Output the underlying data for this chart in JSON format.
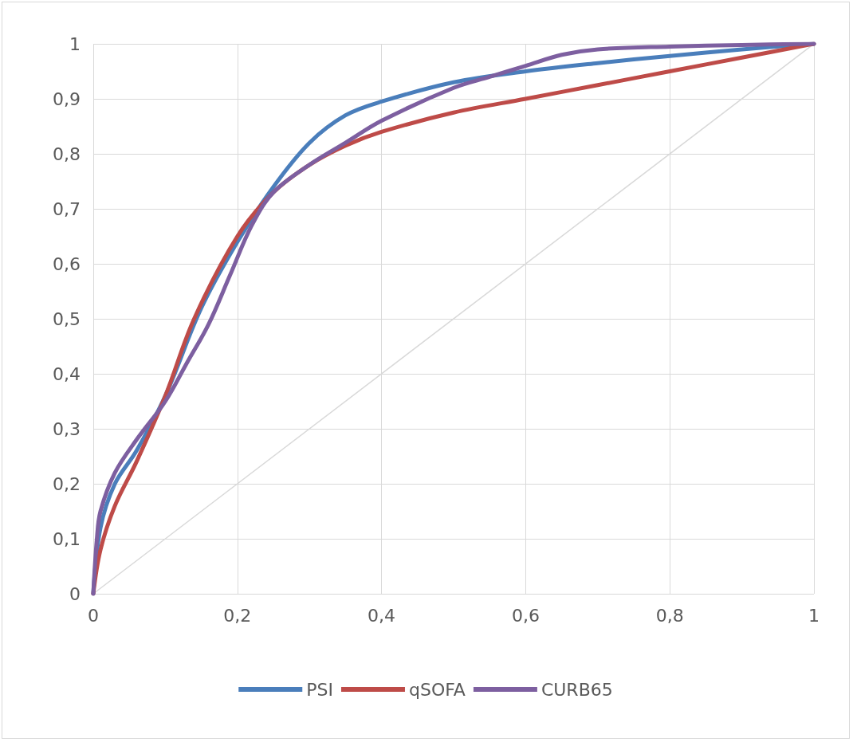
{
  "chart_data": {
    "type": "line",
    "marker": "none",
    "grid": true,
    "legend": "bottom",
    "xlim": [
      0,
      1
    ],
    "ylim": [
      0,
      1
    ],
    "xticks": [
      0,
      {
        "value": 0.2,
        "label": "0,2"
      },
      {
        "value": 0.4,
        "label": "0,4"
      },
      {
        "value": 0.6,
        "label": "0,6"
      },
      {
        "value": 0.8,
        "label": "0,8"
      },
      1
    ],
    "yticks": [
      0,
      {
        "value": 0.1,
        "label": "0,1"
      },
      {
        "value": 0.2,
        "label": "0,2"
      },
      {
        "value": 0.3,
        "label": "0,3"
      },
      {
        "value": 0.4,
        "label": "0,4"
      },
      {
        "value": 0.5,
        "label": "0,5"
      },
      {
        "value": 0.6,
        "label": "0,6"
      },
      {
        "value": 0.7,
        "label": "0,7"
      },
      {
        "value": 0.8,
        "label": "0,8"
      },
      {
        "value": 0.9,
        "label": "0,9"
      },
      1
    ],
    "series": [
      {
        "name": "PSI",
        "color": "#4a7ebb",
        "x": [
          0,
          0.01,
          0.03,
          0.06,
          0.1,
          0.15,
          0.2,
          0.25,
          0.3,
          0.35,
          0.4,
          0.5,
          0.6,
          0.7,
          0.8,
          0.9,
          1
        ],
        "values": [
          0,
          0.12,
          0.2,
          0.26,
          0.36,
          0.52,
          0.64,
          0.74,
          0.82,
          0.87,
          0.895,
          0.93,
          0.95,
          0.965,
          0.978,
          0.99,
          1
        ]
      },
      {
        "name": "qSOFA",
        "color": "#be4b48",
        "x": [
          0,
          0.01,
          0.03,
          0.06,
          0.1,
          0.14,
          0.2,
          0.25,
          0.3,
          0.35,
          0.4,
          0.5,
          0.6,
          0.7,
          0.8,
          0.9,
          1
        ],
        "values": [
          0,
          0.08,
          0.16,
          0.24,
          0.36,
          0.5,
          0.65,
          0.73,
          0.78,
          0.815,
          0.84,
          0.875,
          0.9,
          0.925,
          0.95,
          0.975,
          1
        ]
      },
      {
        "name": "CURB65",
        "color": "#7d5fa0",
        "x": [
          0,
          0.005,
          0.01,
          0.03,
          0.06,
          0.1,
          0.13,
          0.16,
          0.19,
          0.22,
          0.25,
          0.3,
          0.35,
          0.4,
          0.5,
          0.55,
          0.6,
          0.65,
          0.7,
          0.8,
          0.9,
          1
        ],
        "values": [
          0,
          0.1,
          0.15,
          0.22,
          0.28,
          0.35,
          0.42,
          0.49,
          0.58,
          0.67,
          0.73,
          0.78,
          0.82,
          0.86,
          0.92,
          0.94,
          0.96,
          0.98,
          0.99,
          0.995,
          0.998,
          1
        ]
      },
      {
        "color": "#d9d9d9",
        "line_style": "solid",
        "x": [
          0,
          1
        ],
        "values": [
          0,
          1
        ]
      }
    ]
  }
}
